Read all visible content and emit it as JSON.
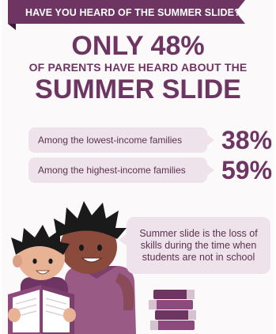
{
  "banner": {
    "text": "HAVE YOU HEARD OF THE SUMMER SLIDE?"
  },
  "headline": {
    "line1": "ONLY 48%",
    "line2": "OF PARENTS HAVE HEARD ABOUT THE",
    "line3": "SUMMER SLIDE"
  },
  "stats": [
    {
      "label": "Among the lowest-income families",
      "value": "38%"
    },
    {
      "label": "Among the highest-income families",
      "value": "59%"
    }
  ],
  "bubble": {
    "lines": [
      "Summer slide is the loss of",
      "skills during the time when",
      "students are not in school"
    ]
  },
  "colors": {
    "accent": "#6e3563",
    "banner": "#6e3563",
    "pill": "#eee2eb"
  }
}
